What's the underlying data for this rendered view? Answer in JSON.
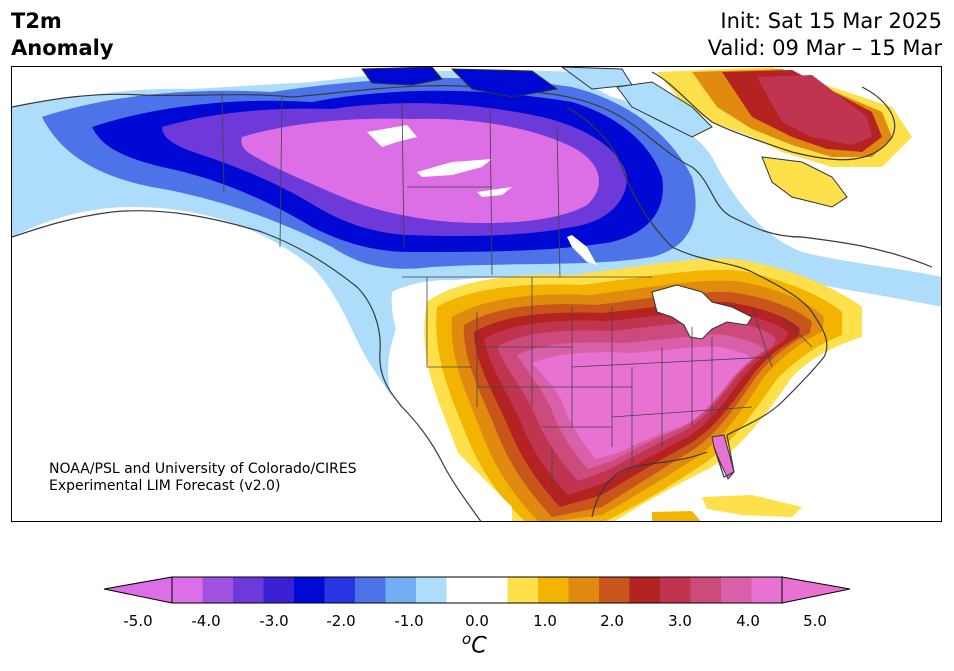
{
  "header": {
    "title_line1": "T2m",
    "title_line2": "Anomaly",
    "init": "Init: Sat 15 Mar 2025",
    "valid": "Valid: 09 Mar – 15 Mar"
  },
  "credit": {
    "line1": "NOAA/PSL and University of Colorado/CIRES",
    "line2": "Experimental LIM Forecast (v2.0)"
  },
  "colorbar": {
    "tick_labels": [
      "-5.0",
      "-4.0",
      "-3.0",
      "-2.0",
      "-1.0",
      "0.0",
      "1.0",
      "2.0",
      "3.0",
      "4.0",
      "5.0"
    ],
    "units_base": "o",
    "units_letter": "C",
    "colors": [
      "#dc6ee6",
      "#a152e0",
      "#6d39d8",
      "#3a22d4",
      "#0008d4",
      "#2736e2",
      "#4d73e8",
      "#74aef2",
      "#aedcfb",
      "#ffffff",
      "#ffffff",
      "#fde04a",
      "#f2b400",
      "#e08a10",
      "#c8561a",
      "#b42222",
      "#c13450",
      "#cd4b7c",
      "#d85fa8",
      "#e872d2"
    ]
  },
  "map": {
    "region": "North America",
    "palette": {
      "deep_purple": "#dc6ee6",
      "blue": "#0008d4",
      "light_blue": "#aedcfb",
      "yellow": "#fde04a",
      "orange": "#e08a10",
      "red": "#b42222",
      "pink": "#e872d2",
      "coastline": "#333333"
    }
  }
}
